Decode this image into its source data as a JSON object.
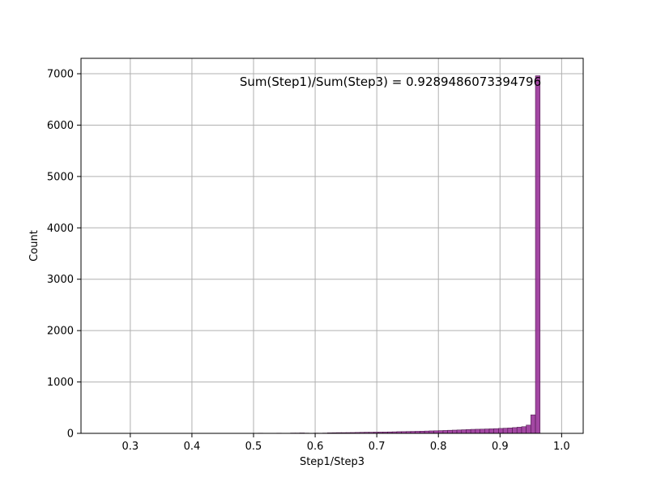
{
  "chart_data": {
    "type": "bar",
    "subtype": "histogram",
    "xlabel": "Step1/Step3",
    "ylabel": "Count",
    "annotation": "Sum(Step1)/Sum(Step3) = 0.9289486073394796",
    "xlim": [
      0.22,
      1.035
    ],
    "ylim": [
      0,
      7300
    ],
    "xticks": [
      0.3,
      0.4,
      0.5,
      0.6,
      0.7,
      0.8,
      0.9,
      1.0
    ],
    "xtick_labels": [
      "0.3",
      "0.4",
      "0.5",
      "0.6",
      "0.7",
      "0.8",
      "0.9",
      "1.0"
    ],
    "yticks": [
      0,
      1000,
      2000,
      3000,
      4000,
      5000,
      6000,
      7000
    ],
    "ytick_labels": [
      "0",
      "1000",
      "2000",
      "3000",
      "4000",
      "5000",
      "6000",
      "7000"
    ],
    "grid": true,
    "bar_color": "#993399",
    "edge_color": "#4d1a4d",
    "bin_width": 0.0075,
    "bin_edges_start": 0.245,
    "values": [
      2,
      1,
      1,
      1,
      1,
      1,
      1,
      1,
      1,
      1,
      1,
      1,
      1,
      1,
      1,
      1,
      1,
      1,
      1,
      1,
      1,
      1,
      1,
      2,
      2,
      3,
      2,
      2,
      3,
      1,
      1,
      3,
      1,
      1,
      2,
      4,
      1,
      1,
      2,
      4,
      1,
      2,
      6,
      6,
      8,
      5,
      3,
      5,
      4,
      6,
      10,
      12,
      14,
      14,
      15,
      16,
      18,
      20,
      22,
      22,
      24,
      25,
      26,
      28,
      30,
      33,
      34,
      36,
      38,
      40,
      42,
      45,
      48,
      50,
      53,
      56,
      60,
      63,
      66,
      70,
      74,
      78,
      80,
      82,
      85,
      88,
      92,
      96,
      100,
      105,
      112,
      120,
      130,
      160,
      360,
      6960
    ]
  }
}
